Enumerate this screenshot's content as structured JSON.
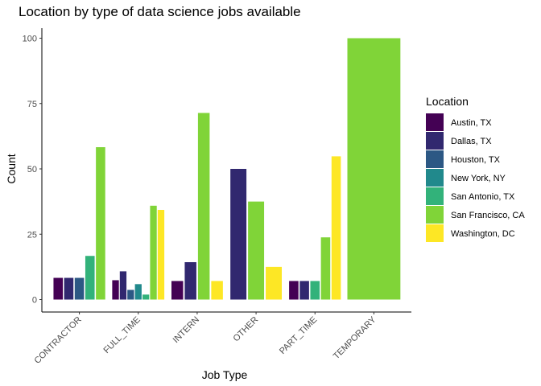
{
  "chart_data": {
    "type": "bar",
    "title": "Location by type of data science jobs available",
    "xlabel": "Job Type",
    "ylabel": "Count",
    "ylim": [
      0,
      100
    ],
    "yticks": [
      0,
      25,
      50,
      75,
      100
    ],
    "grid": false,
    "legend_title": "Location",
    "legend_position": "right",
    "categories": [
      "CONTRACTOR",
      "FULL_TIME",
      "INTERN",
      "OTHER",
      "PART_TIME",
      "TEMPORARY"
    ],
    "series": [
      {
        "name": "Austin, TX",
        "color": "#440154",
        "values": [
          8.3,
          7.4,
          7.1,
          null,
          7.1,
          null
        ]
      },
      {
        "name": "Dallas, TX",
        "color": "#31286F",
        "values": [
          8.3,
          10.8,
          14.3,
          50.0,
          7.1,
          null
        ]
      },
      {
        "name": "Houston, TX",
        "color": "#2C5884",
        "values": [
          8.3,
          3.7,
          null,
          null,
          null,
          null
        ]
      },
      {
        "name": "New York, NY",
        "color": "#21898C",
        "values": [
          null,
          5.9,
          null,
          null,
          null,
          null
        ]
      },
      {
        "name": "San Antonio, TX",
        "color": "#32B27A",
        "values": [
          16.7,
          1.9,
          null,
          null,
          7.1,
          null
        ]
      },
      {
        "name": "San Francisco, CA",
        "color": "#80D438",
        "values": [
          58.3,
          35.9,
          71.4,
          37.5,
          23.8,
          100.0
        ]
      },
      {
        "name": "Washington, DC",
        "color": "#FDE725",
        "values": [
          null,
          34.3,
          7.1,
          12.5,
          54.8,
          null
        ]
      }
    ]
  }
}
